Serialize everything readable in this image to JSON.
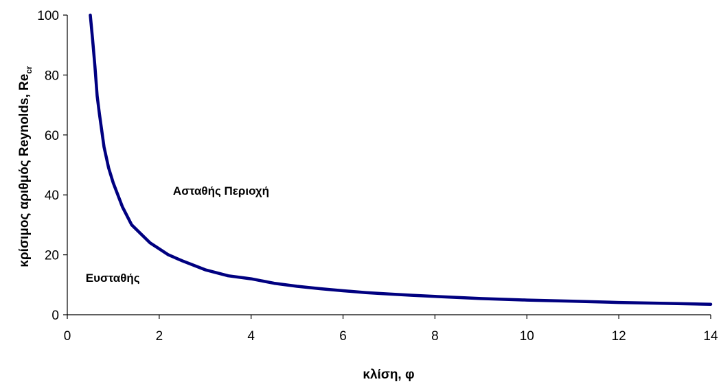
{
  "chart_data": {
    "type": "line",
    "xlabel": "κλίση, φ",
    "ylabel": "κρίσιμος αριθμός Reynolds, Re",
    "ylabel_subscript": "cr",
    "xlim": [
      0,
      14
    ],
    "ylim": [
      0,
      100
    ],
    "x_ticks": [
      "0",
      "2",
      "4",
      "6",
      "8",
      "10",
      "12",
      "14"
    ],
    "y_ticks": [
      "0",
      "20",
      "40",
      "60",
      "80",
      "100"
    ],
    "grid": false,
    "legend": "none",
    "annotations": [
      {
        "id": "unstable",
        "text": "Ασταθής Περιοχή",
        "x": 2.3,
        "y": 40
      },
      {
        "id": "stable",
        "text": "Ευσταθής",
        "x": 0.4,
        "y": 11
      }
    ],
    "series": [
      {
        "color": "#000080",
        "x": [
          0.5,
          0.55,
          0.6,
          0.65,
          0.7,
          0.8,
          0.9,
          1.0,
          1.2,
          1.4,
          1.6,
          1.8,
          2.0,
          2.2,
          2.5,
          3.0,
          3.5,
          4.0,
          4.5,
          5.0,
          5.5,
          6.0,
          6.5,
          7.0,
          7.5,
          8.0,
          9.0,
          10.0,
          11.0,
          12.0,
          13.0,
          14.0
        ],
        "y": [
          100,
          92,
          83,
          73,
          67,
          56,
          49,
          44,
          36,
          30,
          27,
          24,
          22,
          20,
          18,
          15,
          13,
          12,
          10.5,
          9.5,
          8.7,
          8.0,
          7.4,
          6.9,
          6.5,
          6.1,
          5.4,
          4.9,
          4.5,
          4.1,
          3.8,
          3.5
        ]
      }
    ]
  }
}
